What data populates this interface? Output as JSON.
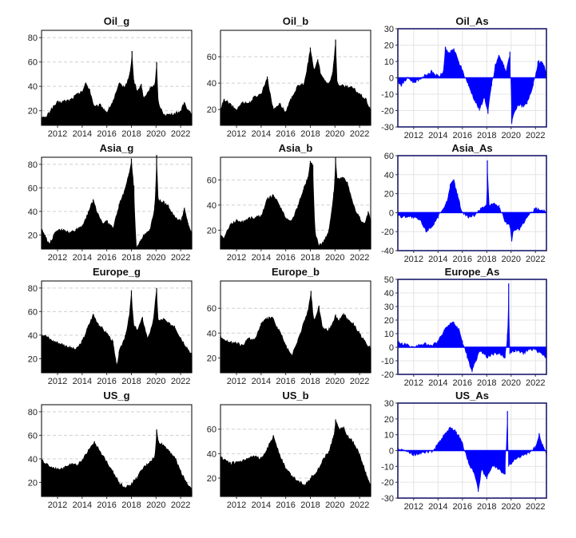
{
  "colors": {
    "black_fill": "#000000",
    "blue_fill": "#0000ff",
    "blue_frame": "#1a1a6e",
    "black_frame": "#000000"
  },
  "x_ticks": [
    "2012",
    "2014",
    "2016",
    "2018",
    "2020",
    "2022"
  ],
  "chart_data": [
    {
      "id": "oil_g",
      "type": "area",
      "title": "Oil_g",
      "xlim": [
        2010.7,
        2022.9
      ],
      "ylim": [
        8,
        86
      ],
      "yticks": [
        20,
        40,
        60,
        80
      ],
      "baseline": 8,
      "x": [
        2010.7,
        2011.0,
        2011.5,
        2012.0,
        2012.5,
        2013.0,
        2013.5,
        2014.0,
        2014.3,
        2014.6,
        2015.0,
        2015.5,
        2016.0,
        2016.5,
        2017.0,
        2017.5,
        2017.9,
        2018.05,
        2018.2,
        2018.5,
        2018.8,
        2019.0,
        2019.3,
        2019.6,
        2019.9,
        2020.05,
        2020.2,
        2020.4,
        2020.7,
        2021.0,
        2021.5,
        2022.0,
        2022.3,
        2022.6,
        2022.9
      ],
      "y": [
        15,
        14,
        22,
        27,
        28,
        29,
        33,
        36,
        43,
        38,
        23,
        25,
        19,
        28,
        42,
        40,
        52,
        69,
        45,
        36,
        42,
        30,
        35,
        40,
        41,
        60,
        26,
        22,
        17,
        17,
        18,
        20,
        27,
        21,
        18
      ]
    },
    {
      "id": "oil_b",
      "type": "area",
      "title": "Oil_b",
      "xlim": [
        2010.7,
        2022.9
      ],
      "ylim": [
        8,
        80
      ],
      "yticks": [
        20,
        40,
        60
      ],
      "baseline": 8,
      "x": [
        2010.7,
        2011.0,
        2011.5,
        2012.0,
        2012.5,
        2013.0,
        2013.5,
        2014.0,
        2014.5,
        2015.0,
        2015.5,
        2016.0,
        2016.5,
        2017.0,
        2017.5,
        2017.8,
        2018.0,
        2018.3,
        2018.6,
        2018.9,
        2019.2,
        2019.5,
        2019.8,
        2020.05,
        2020.2,
        2020.5,
        2021.0,
        2021.5,
        2022.0,
        2022.5,
        2022.9
      ],
      "y": [
        20,
        28,
        24,
        20,
        26,
        25,
        30,
        32,
        45,
        20,
        25,
        18,
        30,
        38,
        40,
        55,
        67,
        50,
        58,
        46,
        42,
        40,
        48,
        73,
        40,
        38,
        38,
        36,
        32,
        28,
        20
      ]
    },
    {
      "id": "oil_as",
      "type": "area",
      "title": "Oil_As",
      "xlim": [
        2010.7,
        2022.9
      ],
      "ylim": [
        -30,
        30
      ],
      "yticks": [
        -30,
        -20,
        -10,
        0,
        10,
        20,
        30
      ],
      "baseline": 0,
      "x": [
        2010.7,
        2011.0,
        2011.5,
        2012.0,
        2012.5,
        2013.0,
        2013.5,
        2014.0,
        2014.4,
        2014.6,
        2014.9,
        2015.3,
        2015.7,
        2016.0,
        2016.5,
        2017.0,
        2017.4,
        2017.8,
        2018.1,
        2018.4,
        2018.7,
        2019.0,
        2019.4,
        2019.6,
        2019.9,
        2020.05,
        2020.3,
        2020.7,
        2021.0,
        2021.3,
        2021.8,
        2022.2,
        2022.6,
        2022.9
      ],
      "y": [
        -2,
        -5,
        0,
        -3,
        -1,
        2,
        4,
        1,
        3,
        19,
        15,
        18,
        10,
        5,
        -5,
        -14,
        -20,
        -12,
        -22,
        -5,
        8,
        14,
        8,
        4,
        16,
        -28,
        -20,
        -17,
        -18,
        -16,
        -5,
        10,
        9,
        4
      ]
    },
    {
      "id": "asia_g",
      "type": "area",
      "title": "Asia_g",
      "xlim": [
        2010.7,
        2022.9
      ],
      "ylim": [
        8,
        86
      ],
      "yticks": [
        20,
        40,
        60,
        80
      ],
      "baseline": 8,
      "x": [
        2010.7,
        2011.0,
        2011.3,
        2011.7,
        2012.0,
        2012.5,
        2013.0,
        2013.5,
        2014.0,
        2014.5,
        2014.9,
        2015.3,
        2015.7,
        2016.0,
        2016.5,
        2017.0,
        2017.5,
        2017.8,
        2018.0,
        2018.2,
        2018.4,
        2018.7,
        2019.0,
        2019.5,
        2019.9,
        2020.05,
        2020.2,
        2020.6,
        2021.0,
        2021.5,
        2022.0,
        2022.3,
        2022.6,
        2022.9
      ],
      "y": [
        25,
        20,
        12,
        20,
        24,
        25,
        22,
        25,
        28,
        40,
        50,
        38,
        30,
        32,
        26,
        46,
        60,
        72,
        85,
        62,
        10,
        15,
        20,
        25,
        45,
        88,
        50,
        48,
        45,
        36,
        32,
        43,
        30,
        22
      ]
    },
    {
      "id": "asia_b",
      "type": "area",
      "title": "Asia_b",
      "xlim": [
        2010.7,
        2022.9
      ],
      "ylim": [
        5,
        78
      ],
      "yticks": [
        20,
        40,
        60
      ],
      "baseline": 5,
      "x": [
        2010.7,
        2011.0,
        2011.5,
        2012.0,
        2012.5,
        2013.0,
        2013.5,
        2014.0,
        2014.5,
        2015.0,
        2015.5,
        2016.0,
        2016.5,
        2017.0,
        2017.5,
        2017.8,
        2018.0,
        2018.2,
        2018.4,
        2018.7,
        2019.0,
        2019.5,
        2019.9,
        2020.05,
        2020.2,
        2020.7,
        2021.0,
        2021.5,
        2022.0,
        2022.4,
        2022.7,
        2022.9
      ],
      "y": [
        16,
        14,
        25,
        28,
        27,
        30,
        30,
        32,
        45,
        48,
        40,
        30,
        28,
        40,
        55,
        62,
        75,
        72,
        18,
        8,
        10,
        20,
        50,
        78,
        60,
        62,
        58,
        40,
        30,
        25,
        35,
        28
      ]
    },
    {
      "id": "asia_as",
      "type": "area",
      "title": "Asia_As",
      "xlim": [
        2010.7,
        2022.9
      ],
      "ylim": [
        -40,
        60
      ],
      "yticks": [
        -40,
        -20,
        0,
        20,
        40,
        60
      ],
      "baseline": 0,
      "x": [
        2010.7,
        2011.0,
        2011.5,
        2012.0,
        2012.5,
        2013.0,
        2013.5,
        2014.0,
        2014.5,
        2014.8,
        2015.0,
        2015.3,
        2015.6,
        2016.0,
        2016.5,
        2017.0,
        2017.5,
        2018.0,
        2018.05,
        2018.2,
        2018.6,
        2019.0,
        2019.5,
        2019.9,
        2020.05,
        2020.2,
        2020.7,
        2021.0,
        2021.5,
        2022.0,
        2022.5,
        2022.9
      ],
      "y": [
        -3,
        -5,
        -4,
        -6,
        -8,
        -20,
        -15,
        -5,
        5,
        15,
        30,
        35,
        20,
        0,
        -5,
        -3,
        5,
        8,
        55,
        8,
        10,
        8,
        -10,
        -15,
        -30,
        -20,
        -18,
        -12,
        -2,
        5,
        3,
        2
      ]
    },
    {
      "id": "europe_g",
      "type": "area",
      "title": "Europe_g",
      "xlim": [
        2010.7,
        2022.9
      ],
      "ylim": [
        8,
        86
      ],
      "yticks": [
        20,
        40,
        60,
        80
      ],
      "baseline": 8,
      "x": [
        2010.7,
        2011.0,
        2011.5,
        2012.0,
        2012.5,
        2013.0,
        2013.5,
        2014.0,
        2014.5,
        2014.9,
        2015.3,
        2015.7,
        2016.0,
        2016.5,
        2016.8,
        2017.0,
        2017.5,
        2017.8,
        2018.0,
        2018.2,
        2018.5,
        2018.9,
        2019.3,
        2019.7,
        2020.05,
        2020.2,
        2020.6,
        2021.0,
        2021.5,
        2022.0,
        2022.5,
        2022.9
      ],
      "y": [
        41,
        40,
        36,
        34,
        32,
        30,
        28,
        35,
        48,
        58,
        50,
        45,
        42,
        35,
        14,
        26,
        40,
        55,
        78,
        48,
        45,
        55,
        38,
        48,
        80,
        52,
        54,
        50,
        48,
        38,
        30,
        24
      ]
    },
    {
      "id": "europe_b",
      "type": "area",
      "title": "Europe_b",
      "xlim": [
        2010.7,
        2022.9
      ],
      "ylim": [
        8,
        82
      ],
      "yticks": [
        20,
        40,
        60
      ],
      "baseline": 8,
      "x": [
        2010.7,
        2011.0,
        2011.5,
        2012.0,
        2012.5,
        2013.0,
        2013.5,
        2014.0,
        2014.5,
        2014.9,
        2015.3,
        2015.7,
        2016.0,
        2016.5,
        2017.0,
        2017.5,
        2017.8,
        2018.05,
        2018.3,
        2018.7,
        2019.0,
        2019.4,
        2019.8,
        2020.05,
        2020.3,
        2020.7,
        2021.0,
        2021.5,
        2022.0,
        2022.5,
        2022.9
      ],
      "y": [
        38,
        35,
        33,
        32,
        30,
        36,
        35,
        48,
        52,
        53,
        45,
        38,
        30,
        22,
        35,
        50,
        58,
        74,
        50,
        62,
        45,
        42,
        48,
        55,
        50,
        56,
        52,
        48,
        40,
        32,
        28
      ]
    },
    {
      "id": "europe_as",
      "type": "area",
      "title": "Europe_As",
      "xlim": [
        2010.7,
        2022.9
      ],
      "ylim": [
        -20,
        50
      ],
      "yticks": [
        -20,
        -10,
        0,
        10,
        20,
        30,
        40,
        50
      ],
      "baseline": 0,
      "x": [
        2010.7,
        2011.0,
        2011.5,
        2012.0,
        2012.5,
        2013.0,
        2013.5,
        2014.0,
        2014.5,
        2015.0,
        2015.3,
        2015.7,
        2016.0,
        2016.4,
        2016.8,
        2017.0,
        2017.5,
        2018.0,
        2018.5,
        2019.0,
        2019.5,
        2019.7,
        2019.8,
        2019.9,
        2020.1,
        2020.5,
        2021.0,
        2021.5,
        2022.0,
        2022.5,
        2022.9
      ],
      "y": [
        4,
        3,
        2,
        0,
        2,
        3,
        1,
        5,
        13,
        18,
        18,
        14,
        5,
        -8,
        -18,
        -12,
        -2,
        -8,
        -5,
        -5,
        -8,
        10,
        47,
        -5,
        -3,
        -3,
        -5,
        -2,
        -2,
        -5,
        -8
      ]
    },
    {
      "id": "us_g",
      "type": "area",
      "title": "US_g",
      "xlim": [
        2010.7,
        2022.9
      ],
      "ylim": [
        8,
        86
      ],
      "yticks": [
        20,
        40,
        60,
        80
      ],
      "baseline": 8,
      "x": [
        2010.7,
        2011.0,
        2011.5,
        2012.0,
        2012.5,
        2013.0,
        2013.5,
        2014.0,
        2014.5,
        2015.0,
        2015.5,
        2016.0,
        2016.5,
        2017.0,
        2017.5,
        2018.0,
        2018.5,
        2019.0,
        2019.5,
        2019.9,
        2020.05,
        2020.2,
        2020.6,
        2021.0,
        2021.5,
        2022.0,
        2022.5,
        2022.9
      ],
      "y": [
        40,
        36,
        33,
        32,
        33,
        36,
        35,
        38,
        48,
        55,
        45,
        38,
        30,
        20,
        16,
        19,
        25,
        33,
        38,
        42,
        65,
        55,
        52,
        48,
        42,
        30,
        20,
        14
      ]
    },
    {
      "id": "us_b",
      "type": "area",
      "title": "US_b",
      "xlim": [
        2010.7,
        2022.9
      ],
      "ylim": [
        5,
        80
      ],
      "yticks": [
        20,
        40,
        60
      ],
      "baseline": 5,
      "x": [
        2010.7,
        2011.0,
        2011.5,
        2012.0,
        2012.5,
        2013.0,
        2013.5,
        2014.0,
        2014.5,
        2015.0,
        2015.5,
        2016.0,
        2016.5,
        2017.0,
        2017.5,
        2018.0,
        2018.5,
        2019.0,
        2019.5,
        2019.9,
        2020.05,
        2020.3,
        2020.7,
        2021.0,
        2021.5,
        2022.0,
        2022.5,
        2022.9
      ],
      "y": [
        38,
        35,
        32,
        33,
        34,
        36,
        38,
        36,
        45,
        55,
        40,
        28,
        22,
        18,
        15,
        20,
        25,
        35,
        42,
        55,
        68,
        60,
        62,
        55,
        50,
        40,
        25,
        15
      ]
    },
    {
      "id": "us_as",
      "type": "area",
      "title": "US_As",
      "xlim": [
        2010.7,
        2022.9
      ],
      "ylim": [
        -30,
        30
      ],
      "yticks": [
        -30,
        -20,
        -10,
        0,
        10,
        20,
        30
      ],
      "baseline": 0,
      "x": [
        2010.7,
        2011.0,
        2011.5,
        2012.0,
        2012.5,
        2013.0,
        2013.5,
        2014.0,
        2014.5,
        2015.0,
        2015.5,
        2016.0,
        2016.5,
        2017.0,
        2017.3,
        2017.6,
        2018.0,
        2018.5,
        2019.0,
        2019.5,
        2019.7,
        2019.8,
        2020.0,
        2020.5,
        2021.0,
        2021.5,
        2022.0,
        2022.3,
        2022.6,
        2022.9
      ],
      "y": [
        2,
        1,
        -1,
        -3,
        -2,
        -1,
        -1,
        5,
        10,
        15,
        12,
        5,
        -8,
        -15,
        -26,
        -12,
        -18,
        -10,
        -12,
        -15,
        25,
        -10,
        -8,
        -5,
        -3,
        -2,
        3,
        11,
        4,
        -3
      ]
    }
  ]
}
